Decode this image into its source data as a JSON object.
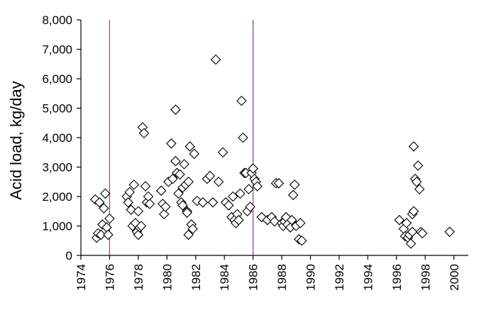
{
  "chart_data": {
    "type": "scatter",
    "title": "",
    "xlabel": "",
    "ylabel": "Acid load, kg/day",
    "xlim": [
      1974,
      2001
    ],
    "ylim": [
      0,
      8000
    ],
    "x_ticks": [
      "1974",
      "1976",
      "1978",
      "1980",
      "1982",
      "1984",
      "1986",
      "1988",
      "1990",
      "1992",
      "1994",
      "1996",
      "1998",
      "2000"
    ],
    "y_ticks": [
      "0",
      "1,000",
      "2,000",
      "3,000",
      "4,000",
      "5,000",
      "6,000",
      "7,000",
      "8,000"
    ],
    "grid": false,
    "marker": "diamond-open",
    "reference_lines": [
      {
        "x": 1976,
        "color": "#e03030"
      },
      {
        "x": 1986,
        "color": "#7b3fb0"
      }
    ],
    "points": [
      [
        1975.0,
        1900
      ],
      [
        1975.1,
        600
      ],
      [
        1975.2,
        750
      ],
      [
        1975.3,
        1800
      ],
      [
        1975.4,
        700
      ],
      [
        1975.5,
        1050
      ],
      [
        1975.6,
        1600
      ],
      [
        1975.7,
        2100
      ],
      [
        1975.8,
        950
      ],
      [
        1975.9,
        700
      ],
      [
        1976.0,
        1250
      ],
      [
        1977.2,
        2000
      ],
      [
        1977.3,
        1800
      ],
      [
        1977.4,
        2150
      ],
      [
        1977.5,
        1550
      ],
      [
        1977.6,
        1000
      ],
      [
        1977.7,
        2400
      ],
      [
        1977.8,
        1100
      ],
      [
        1977.9,
        800
      ],
      [
        1978.0,
        1500
      ],
      [
        1978.0,
        700
      ],
      [
        1978.1,
        950
      ],
      [
        1978.2,
        1000
      ],
      [
        1978.3,
        4350
      ],
      [
        1978.4,
        4150
      ],
      [
        1978.5,
        2350
      ],
      [
        1978.6,
        1800
      ],
      [
        1978.7,
        2000
      ],
      [
        1978.8,
        1750
      ],
      [
        1979.6,
        2200
      ],
      [
        1979.7,
        1750
      ],
      [
        1979.8,
        1400
      ],
      [
        1979.9,
        1650
      ],
      [
        1980.1,
        2500
      ],
      [
        1980.3,
        3800
      ],
      [
        1980.4,
        2600
      ],
      [
        1980.6,
        4950
      ],
      [
        1980.6,
        3200
      ],
      [
        1980.7,
        2800
      ],
      [
        1980.8,
        2100
      ],
      [
        1980.9,
        2750
      ],
      [
        1981.0,
        1800
      ],
      [
        1981.1,
        2300
      ],
      [
        1981.1,
        1700
      ],
      [
        1981.2,
        3100
      ],
      [
        1981.3,
        2400
      ],
      [
        1981.4,
        1500
      ],
      [
        1981.4,
        1450
      ],
      [
        1981.5,
        700
      ],
      [
        1981.5,
        2500
      ],
      [
        1981.6,
        3700
      ],
      [
        1981.7,
        1050
      ],
      [
        1981.8,
        900
      ],
      [
        1981.9,
        3450
      ],
      [
        1982.1,
        1850
      ],
      [
        1982.5,
        1800
      ],
      [
        1982.8,
        2600
      ],
      [
        1983.0,
        2700
      ],
      [
        1983.2,
        1800
      ],
      [
        1983.4,
        6650
      ],
      [
        1983.6,
        2500
      ],
      [
        1983.9,
        3500
      ],
      [
        1984.1,
        1800
      ],
      [
        1984.3,
        1700
      ],
      [
        1984.5,
        1300
      ],
      [
        1984.6,
        2000
      ],
      [
        1984.7,
        1200
      ],
      [
        1984.8,
        1100
      ],
      [
        1984.9,
        1400
      ],
      [
        1985.0,
        1200
      ],
      [
        1985.1,
        2100
      ],
      [
        1985.2,
        5250
      ],
      [
        1985.3,
        4000
      ],
      [
        1985.4,
        2800
      ],
      [
        1985.5,
        2800
      ],
      [
        1985.6,
        1500
      ],
      [
        1985.7,
        2250
      ],
      [
        1985.8,
        1650
      ],
      [
        1985.9,
        2800
      ],
      [
        1986.0,
        2950
      ],
      [
        1986.1,
        2600
      ],
      [
        1986.2,
        2500
      ],
      [
        1986.3,
        2350
      ],
      [
        1986.6,
        1300
      ],
      [
        1987.0,
        1200
      ],
      [
        1987.3,
        1300
      ],
      [
        1987.5,
        1150
      ],
      [
        1987.6,
        2450
      ],
      [
        1987.8,
        2450
      ],
      [
        1988.0,
        1100
      ],
      [
        1988.1,
        1000
      ],
      [
        1988.2,
        1150
      ],
      [
        1988.3,
        1300
      ],
      [
        1988.4,
        1050
      ],
      [
        1988.6,
        950
      ],
      [
        1988.7,
        1200
      ],
      [
        1988.8,
        2050
      ],
      [
        1988.9,
        2400
      ],
      [
        1989.0,
        1000
      ],
      [
        1989.2,
        550
      ],
      [
        1989.3,
        1100
      ],
      [
        1989.4,
        500
      ],
      [
        1996.2,
        1200
      ],
      [
        1996.5,
        900
      ],
      [
        1996.6,
        650
      ],
      [
        1996.7,
        1100
      ],
      [
        1996.8,
        600
      ],
      [
        1996.9,
        700
      ],
      [
        1997.0,
        400
      ],
      [
        1997.1,
        800
      ],
      [
        1997.1,
        1400
      ],
      [
        1997.2,
        1500
      ],
      [
        1997.2,
        3700
      ],
      [
        1997.3,
        2600
      ],
      [
        1997.4,
        2500
      ],
      [
        1997.5,
        3050
      ],
      [
        1997.6,
        2250
      ],
      [
        1997.7,
        800
      ],
      [
        1997.8,
        750
      ],
      [
        1999.7,
        800
      ]
    ]
  }
}
